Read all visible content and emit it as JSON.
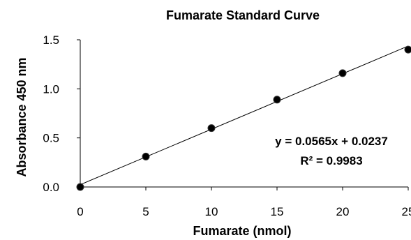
{
  "chart_data": {
    "type": "scatter",
    "title": "Fumarate Standard Curve",
    "xlabel": "Fumarate (nmol)",
    "ylabel": "Absorbance 450 nm",
    "xlim": [
      0,
      25
    ],
    "ylim": [
      0,
      1.5
    ],
    "x_ticks": [
      "0",
      "5",
      "10",
      "15",
      "20",
      "25"
    ],
    "y_ticks": [
      "0.0",
      "0.5",
      "1.0",
      "1.5"
    ],
    "grid": false,
    "series": [
      {
        "x": [
          0,
          5,
          10,
          15,
          20,
          25
        ],
        "y": [
          0.0,
          0.31,
          0.6,
          0.89,
          1.16,
          1.4
        ]
      }
    ],
    "trendline": {
      "type": "linear",
      "slope": 0.0565,
      "intercept": 0.0237
    },
    "annotations": {
      "equation": "y = 0.0565x + 0.0237",
      "r_squared": "R² = 0.9983"
    },
    "colors": {
      "marker": "#000000",
      "line": "#000000",
      "axis": "#000000"
    }
  }
}
